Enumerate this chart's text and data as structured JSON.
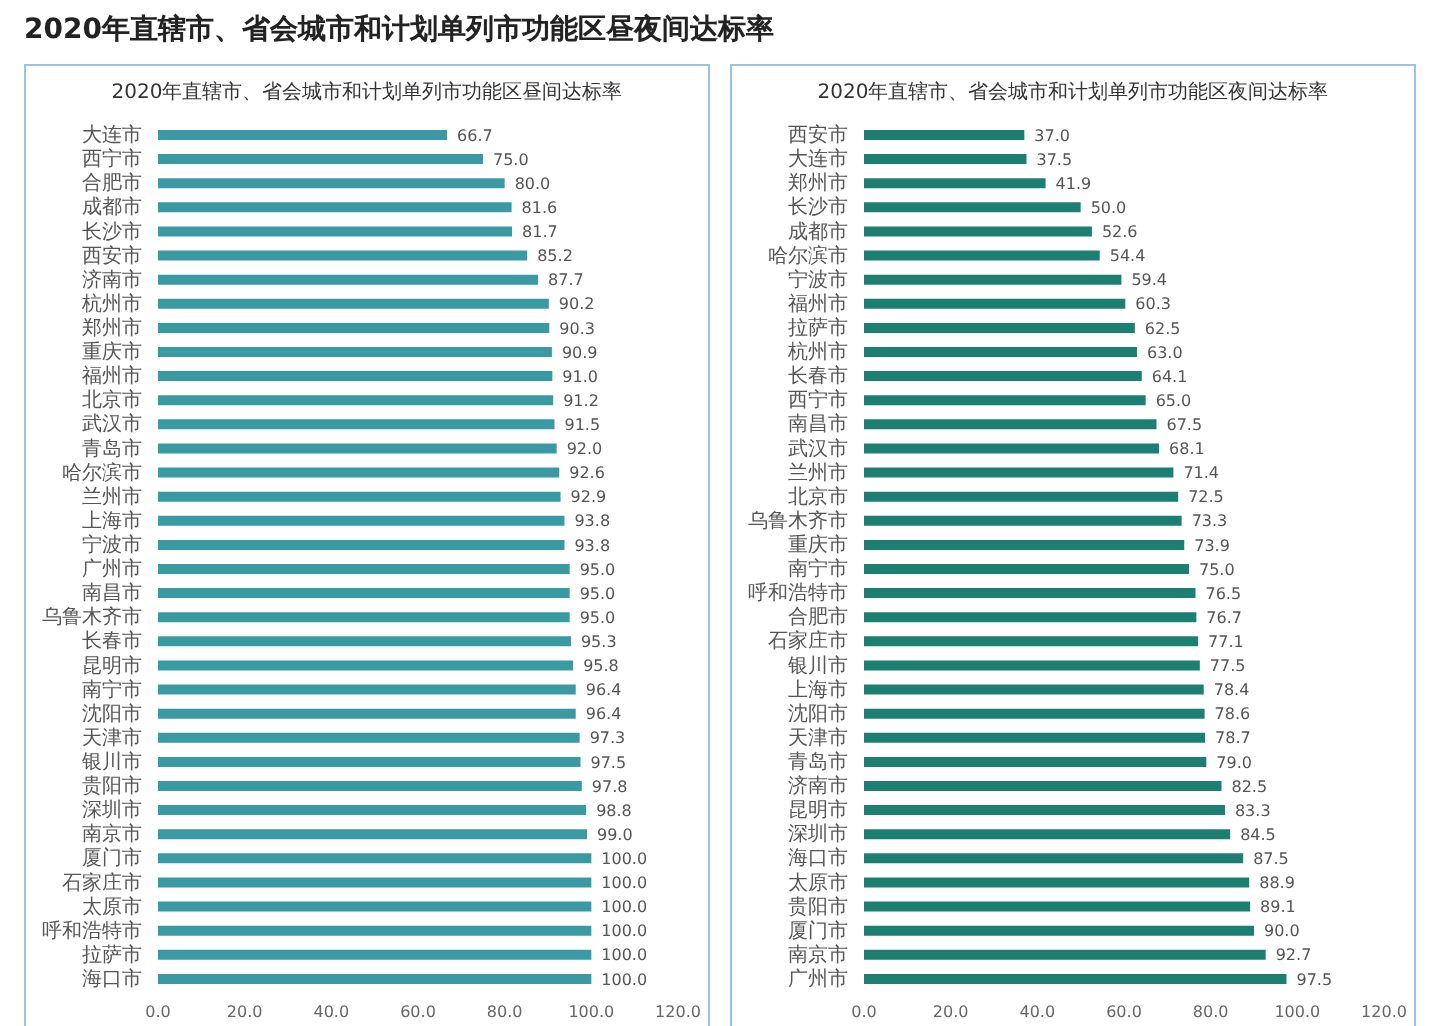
{
  "chart_data": [
    {
      "type": "other",
      "title": "2020年直辖市、省会城市和计划单列市功能区昼夜间达标率"
    },
    {
      "type": "bar",
      "orientation": "horizontal",
      "title": "2020年直辖市、省会城市和计划单列市功能区昼间达标率",
      "categories": [
        "大连市",
        "西宁市",
        "合肥市",
        "成都市",
        "长沙市",
        "西安市",
        "济南市",
        "杭州市",
        "郑州市",
        "重庆市",
        "福州市",
        "北京市",
        "武汉市",
        "青岛市",
        "哈尔滨市",
        "兰州市",
        "上海市",
        "宁波市",
        "广州市",
        "南昌市",
        "乌鲁木齐市",
        "长春市",
        "昆明市",
        "南宁市",
        "沈阳市",
        "天津市",
        "银川市",
        "贵阳市",
        "深圳市",
        "南京市",
        "厦门市",
        "石家庄市",
        "太原市",
        "呼和浩特市",
        "拉萨市",
        "海口市"
      ],
      "values": [
        66.7,
        75.0,
        80.0,
        81.6,
        81.7,
        85.2,
        87.7,
        90.2,
        90.3,
        90.9,
        91.0,
        91.2,
        91.5,
        92.0,
        92.6,
        92.9,
        93.8,
        93.8,
        95.0,
        95.0,
        95.0,
        95.3,
        95.8,
        96.4,
        96.4,
        97.3,
        97.5,
        97.8,
        98.8,
        99.0,
        100.0,
        100.0,
        100.0,
        100.0,
        100.0,
        100.0
      ],
      "value_labels": [
        "66.7",
        "75.0",
        "80.0",
        "81.6",
        "81.7",
        "85.2",
        "87.7",
        "90.2",
        "90.3",
        "90.9",
        "91.0",
        "91.2",
        "91.5",
        "92.0",
        "92.6",
        "92.9",
        "93.8",
        "93.8",
        "95.0",
        "95.0",
        "95.0",
        "95.3",
        "95.8",
        "96.4",
        "96.4",
        "97.3",
        "97.5",
        "97.8",
        "98.8",
        "99.0",
        "100.0",
        "100.0",
        "100.0",
        "100.0",
        "100.0",
        "100.0"
      ],
      "color": "#3a9aa4",
      "xlim": [
        0,
        120
      ],
      "xticks": [
        {
          "value": 0,
          "label": "0.0"
        },
        {
          "value": 20,
          "label": "20.0"
        },
        {
          "value": 40,
          "label": "40.0"
        },
        {
          "value": 60,
          "label": "60.0"
        },
        {
          "value": 80,
          "label": "80.0"
        },
        {
          "value": 100,
          "label": "100.0"
        },
        {
          "value": 120,
          "label": "120.0"
        }
      ]
    },
    {
      "type": "bar",
      "orientation": "horizontal",
      "title": "2020年直辖市、省会城市和计划单列市功能区夜间达标率",
      "categories": [
        "西安市",
        "大连市",
        "郑州市",
        "长沙市",
        "成都市",
        "哈尔滨市",
        "宁波市",
        "福州市",
        "拉萨市",
        "杭州市",
        "长春市",
        "西宁市",
        "南昌市",
        "武汉市",
        "兰州市",
        "北京市",
        "乌鲁木齐市",
        "重庆市",
        "南宁市",
        "呼和浩特市",
        "合肥市",
        "石家庄市",
        "银川市",
        "上海市",
        "沈阳市",
        "天津市",
        "青岛市",
        "济南市",
        "昆明市",
        "深圳市",
        "海口市",
        "太原市",
        "贵阳市",
        "厦门市",
        "南京市",
        "广州市"
      ],
      "values": [
        37.0,
        37.5,
        41.9,
        50.0,
        52.6,
        54.4,
        59.4,
        60.3,
        62.5,
        63.0,
        64.1,
        65.0,
        67.5,
        68.1,
        71.4,
        72.5,
        73.3,
        73.9,
        75.0,
        76.5,
        76.7,
        77.1,
        77.5,
        78.4,
        78.6,
        78.7,
        79.0,
        82.5,
        83.3,
        84.5,
        87.5,
        88.9,
        89.1,
        90.0,
        92.7,
        97.5
      ],
      "value_labels": [
        "37.0",
        "37.5",
        "41.9",
        "50.0",
        "52.6",
        "54.4",
        "59.4",
        "60.3",
        "62.5",
        "63.0",
        "64.1",
        "65.0",
        "67.5",
        "68.1",
        "71.4",
        "72.5",
        "73.3",
        "73.9",
        "75.0",
        "76.5",
        "76.7",
        "77.1",
        "77.5",
        "78.4",
        "78.6",
        "78.7",
        "79.0",
        "82.5",
        "83.3",
        "84.5",
        "87.5",
        "88.9",
        "89.1",
        "90.0",
        "92.7",
        "97.5"
      ],
      "color": "#1d7f72",
      "xlim": [
        0,
        120
      ],
      "xticks": [
        {
          "value": 0,
          "label": "0.0"
        },
        {
          "value": 20,
          "label": "20.0"
        },
        {
          "value": 40,
          "label": "40.0"
        },
        {
          "value": 60,
          "label": "60.0"
        },
        {
          "value": 80,
          "label": "80.0"
        },
        {
          "value": 100,
          "label": "100.0"
        },
        {
          "value": 120,
          "label": "120.0"
        }
      ]
    }
  ]
}
